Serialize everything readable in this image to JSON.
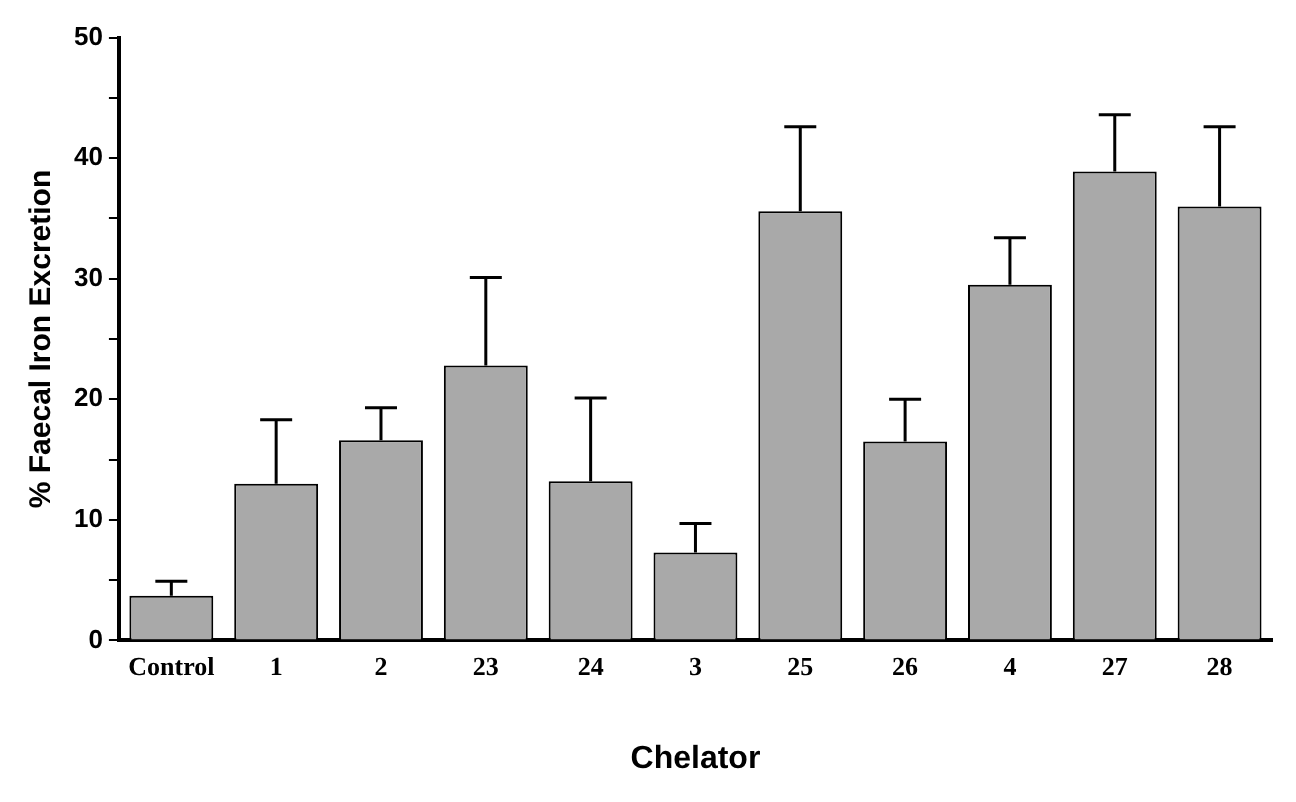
{
  "chart_data": {
    "type": "bar",
    "xlabel": "Chelator",
    "ylabel": "% Faecal Iron Excretion",
    "categories": [
      "Control",
      "1",
      "2",
      "23",
      "24",
      "3",
      "25",
      "26",
      "4",
      "27",
      "28"
    ],
    "values": [
      3.7,
      13.0,
      16.6,
      22.8,
      13.2,
      7.3,
      35.6,
      16.5,
      29.5,
      38.9,
      36.0
    ],
    "errors": [
      [
        3.7,
        4.9
      ],
      [
        13.0,
        18.3
      ],
      [
        16.6,
        19.3
      ],
      [
        22.8,
        30.1
      ],
      [
        13.2,
        20.1
      ],
      [
        7.3,
        9.7
      ],
      [
        35.6,
        42.6
      ],
      [
        16.5,
        20.0
      ],
      [
        29.5,
        33.4
      ],
      [
        38.9,
        43.6
      ],
      [
        36.0,
        42.6
      ]
    ],
    "color": "#a9a9a9",
    "ylim": [
      0,
      50
    ],
    "yticks": [
      0,
      {
        "value": 5,
        "label": null
      },
      10,
      {
        "value": 15,
        "label": null
      },
      20,
      {
        "value": 25,
        "label": null
      },
      30,
      {
        "value": 35,
        "label": null
      },
      40,
      {
        "value": 45,
        "label": null
      },
      50
    ],
    "grid": false,
    "legend": false
  }
}
